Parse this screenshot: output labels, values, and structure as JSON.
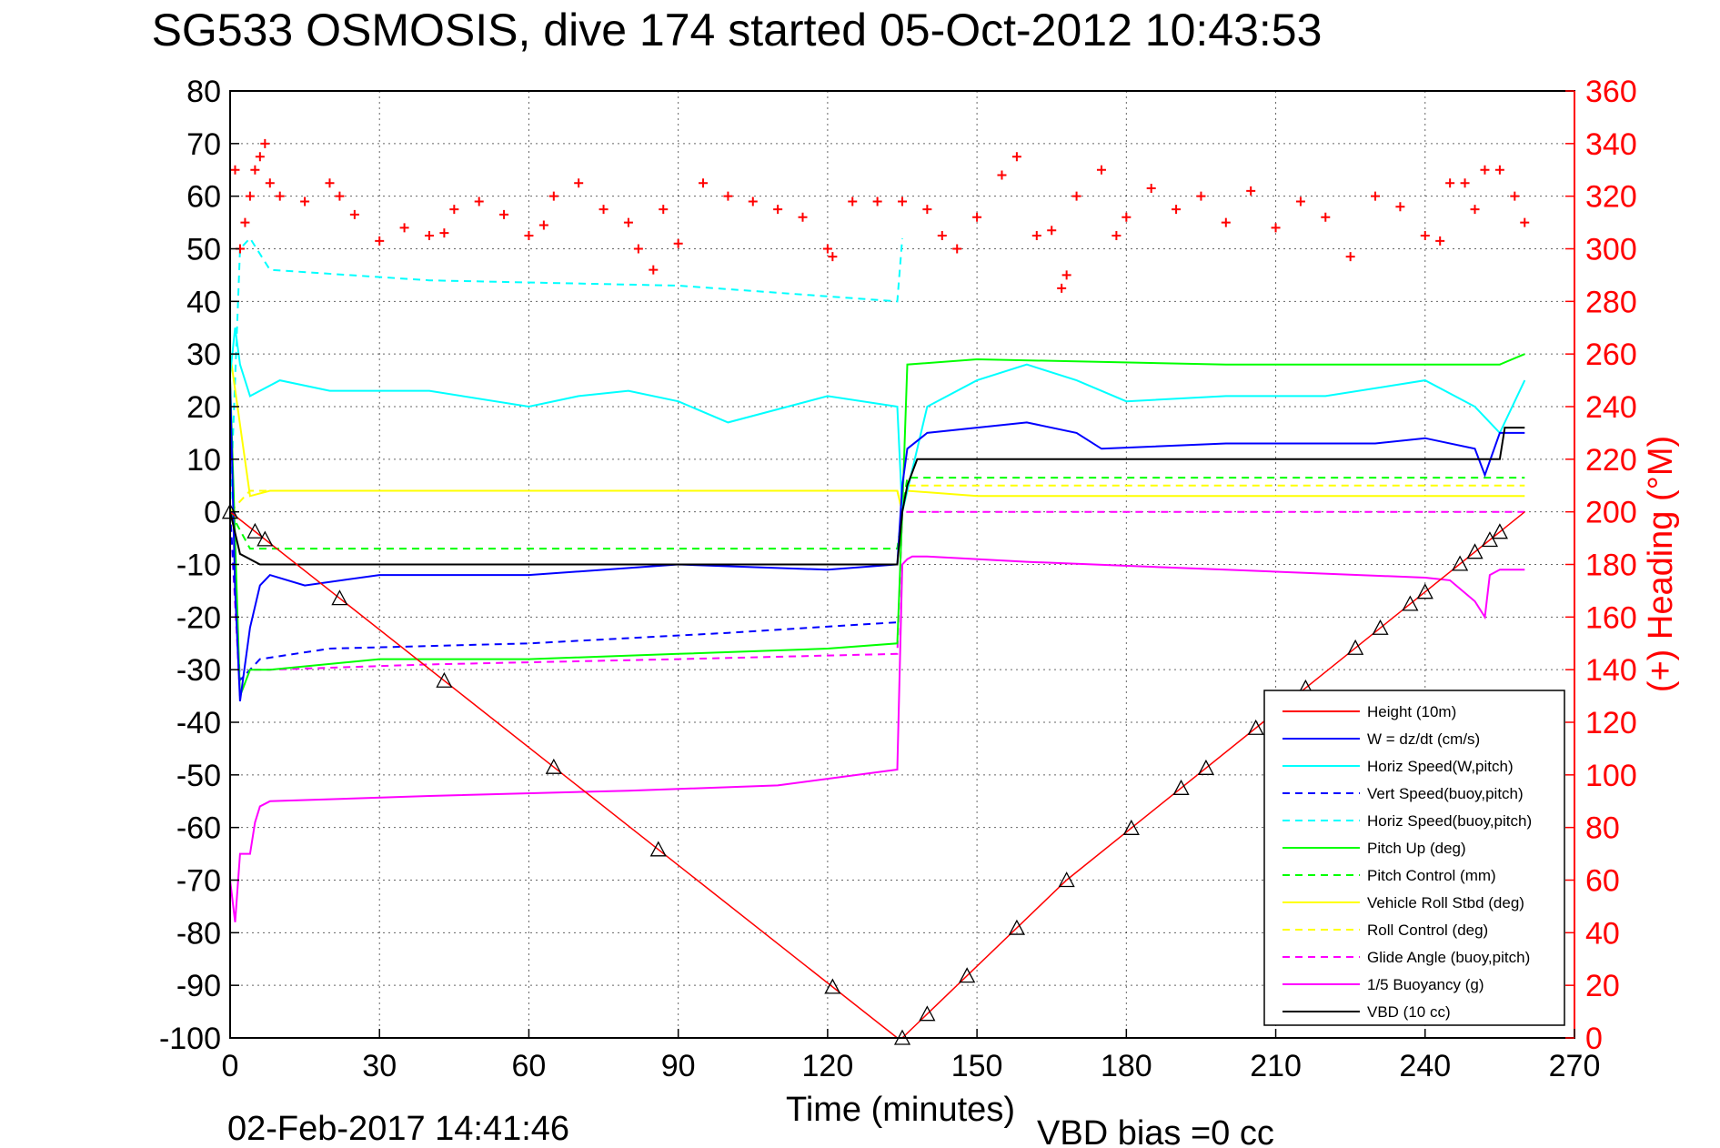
{
  "chart_data": {
    "type": "line",
    "title": "SG533 OSMOSIS, dive 174 started 05-Oct-2012 10:43:53",
    "xlabel": "Time (minutes)",
    "ylabel_right": "(+) Heading (°M)",
    "footer_left": "02-Feb-2017 14:41:46",
    "footer_right": "VBD bias =0 cc",
    "xlim": [
      0,
      270
    ],
    "ylim": [
      -100,
      80
    ],
    "ylim_right": [
      0,
      360
    ],
    "grid": true,
    "legend_position": "bottom-right",
    "x_ticks": [
      "0",
      "30",
      "60",
      "90",
      "120",
      "150",
      "180",
      "210",
      "240",
      "270"
    ],
    "y_ticks": [
      "80",
      "70",
      "60",
      "50",
      "40",
      "30",
      "20",
      "10",
      "0",
      "-10",
      "-20",
      "-30",
      "-40",
      "-50",
      "-60",
      "-70",
      "-80",
      "-90",
      "-100"
    ],
    "y_ticks_right": [
      "360",
      "340",
      "320",
      "300",
      "280",
      "260",
      "240",
      "220",
      "200",
      "180",
      "160",
      "140",
      "120",
      "100",
      "80",
      "60",
      "40",
      "20",
      "0"
    ],
    "legend": [
      {
        "label": "Height (10m)",
        "color": "#ff0000",
        "dash": false
      },
      {
        "label": "W = dz/dt (cm/s)",
        "color": "#0000ff",
        "dash": false
      },
      {
        "label": "Horiz Speed(W,pitch)",
        "color": "#00ffff",
        "dash": false
      },
      {
        "label": "Vert Speed(buoy,pitch)",
        "color": "#0000ff",
        "dash": true
      },
      {
        "label": "Horiz Speed(buoy,pitch)",
        "color": "#00ffff",
        "dash": true
      },
      {
        "label": "Pitch Up (deg)",
        "color": "#00ff00",
        "dash": false
      },
      {
        "label": "Pitch Control (mm)",
        "color": "#00ff00",
        "dash": true
      },
      {
        "label": "Vehicle Roll Stbd (deg)",
        "color": "#ffff00",
        "dash": false
      },
      {
        "label": "Roll Control (deg)",
        "color": "#ffff00",
        "dash": true
      },
      {
        "label": "Glide Angle (buoy,pitch)",
        "color": "#ff00ff",
        "dash": true
      },
      {
        "label": "1/5 Buoyancy (g)",
        "color": "#ff00ff",
        "dash": false
      },
      {
        "label": "VBD (10 cc)",
        "color": "#000000",
        "dash": false
      }
    ],
    "series": [
      {
        "name": "Height (10m)",
        "color": "#ff0000",
        "dash": false,
        "x": [
          0,
          134,
          135,
          168,
          260
        ],
        "y": [
          0,
          -100,
          -100,
          -70,
          0
        ]
      },
      {
        "name": "W = dz/dt (cm/s)",
        "color": "#0000ff",
        "dash": false,
        "x": [
          0,
          1,
          2,
          4,
          6,
          8,
          15,
          30,
          60,
          90,
          120,
          134,
          135,
          136,
          140,
          150,
          160,
          170,
          175,
          200,
          230,
          240,
          250,
          252,
          255,
          260
        ],
        "y": [
          25,
          -15,
          -36,
          -22,
          -14,
          -12,
          -14,
          -12,
          -12,
          -10,
          -11,
          -10,
          5,
          12,
          15,
          16,
          17,
          15,
          12,
          13,
          13,
          14,
          12,
          7,
          15,
          15
        ]
      },
      {
        "name": "Horiz Speed(W,pitch)",
        "color": "#00ffff",
        "dash": false,
        "x": [
          0,
          1,
          2,
          4,
          6,
          10,
          20,
          40,
          60,
          70,
          80,
          90,
          100,
          120,
          134,
          135,
          140,
          150,
          160,
          170,
          180,
          200,
          220,
          240,
          250,
          255,
          260
        ],
        "y": [
          26,
          35,
          28,
          22,
          23,
          25,
          23,
          23,
          20,
          22,
          23,
          21,
          17,
          22,
          20,
          0,
          20,
          25,
          28,
          25,
          21,
          22,
          22,
          25,
          20,
          15,
          25
        ]
      },
      {
        "name": "Vert Speed(buoy,pitch)",
        "color": "#0000ff",
        "dash": true,
        "x": [
          0,
          2,
          4,
          6,
          20,
          60,
          100,
          134
        ],
        "y": [
          0,
          -32,
          -30,
          -28,
          -26,
          -25,
          -23,
          -21
        ]
      },
      {
        "name": "Horiz Speed(buoy,pitch)",
        "color": "#00ffff",
        "dash": true,
        "x": [
          0,
          2,
          4,
          8,
          40,
          90,
          134,
          135
        ],
        "y": [
          0,
          50,
          52,
          46,
          44,
          43,
          40,
          52
        ]
      },
      {
        "name": "Pitch Up (deg)",
        "color": "#00ff00",
        "dash": false,
        "x": [
          0,
          2,
          4,
          8,
          30,
          60,
          90,
          120,
          134,
          135,
          136,
          150,
          200,
          250,
          255,
          260
        ],
        "y": [
          25,
          -35,
          -30,
          -30,
          -28,
          -28,
          -27,
          -26,
          -25,
          0,
          28,
          29,
          28,
          28,
          28,
          30
        ]
      },
      {
        "name": "Pitch Control (mm)",
        "color": "#00ff00",
        "dash": true,
        "x": [
          0,
          4,
          8,
          134,
          135,
          136,
          260
        ],
        "y": [
          0,
          -7,
          -7,
          -7,
          0,
          6.5,
          6.5
        ]
      },
      {
        "name": "Vehicle Roll Stbd (deg)",
        "color": "#ffff00",
        "dash": false,
        "x": [
          0,
          4,
          8,
          30,
          60,
          90,
          120,
          134,
          135,
          136,
          150,
          200,
          250,
          260
        ],
        "y": [
          30,
          3,
          4,
          4,
          4,
          4,
          4,
          4,
          0,
          4,
          3,
          3,
          3,
          3
        ]
      },
      {
        "name": "Roll Control (deg)",
        "color": "#ffff00",
        "dash": true,
        "x": [
          0,
          4,
          8,
          134,
          135,
          136,
          260
        ],
        "y": [
          0,
          4,
          4,
          4,
          0,
          5,
          5
        ]
      },
      {
        "name": "Glide Angle (buoy,pitch)",
        "color": "#ff00ff",
        "dash": true,
        "x": [
          0,
          2,
          4,
          8,
          40,
          90,
          134,
          135,
          136,
          260
        ],
        "y": [
          0,
          -35,
          -30,
          -30,
          -29,
          -28,
          -27,
          0,
          0,
          0
        ]
      },
      {
        "name": "1/5 Buoyancy (g)",
        "color": "#ff00ff",
        "dash": false,
        "x": [
          0,
          1,
          2,
          4,
          5,
          6,
          8,
          40,
          80,
          110,
          134,
          135,
          136,
          137,
          140,
          160,
          200,
          240,
          245,
          250,
          252,
          253,
          255,
          260
        ],
        "y": [
          -70,
          -78,
          -65,
          -65,
          -59,
          -56,
          -55,
          -54,
          -53,
          -52,
          -49,
          -10,
          -9,
          -8.5,
          -8.5,
          -9.5,
          -11,
          -12.5,
          -13,
          -17,
          -20,
          -12,
          -11,
          -11
        ]
      },
      {
        "name": "VBD (10 cc)",
        "color": "#000000",
        "dash": false,
        "x": [
          0,
          2,
          6,
          134,
          135,
          136,
          138,
          150,
          200,
          255,
          256,
          260
        ],
        "y": [
          0,
          -8,
          -10,
          -10,
          0,
          5,
          10,
          10,
          10,
          10,
          16,
          16
        ]
      }
    ],
    "heading_points_deg": {
      "color": "#ff0000",
      "x": [
        1,
        2,
        3,
        4,
        5,
        6,
        7,
        8,
        10,
        15,
        20,
        22,
        25,
        30,
        35,
        40,
        43,
        45,
        50,
        55,
        60,
        63,
        65,
        70,
        75,
        80,
        82,
        85,
        87,
        90,
        95,
        100,
        105,
        110,
        115,
        120,
        121,
        125,
        130,
        135,
        140,
        143,
        146,
        150,
        155,
        158,
        162,
        165,
        167,
        168,
        170,
        175,
        178,
        180,
        185,
        190,
        195,
        200,
        205,
        210,
        215,
        220,
        225,
        230,
        235,
        240,
        243,
        245,
        248,
        250,
        252,
        255,
        258,
        260
      ],
      "y": [
        330,
        300,
        310,
        320,
        330,
        335,
        340,
        325,
        320,
        318,
        325,
        320,
        313,
        303,
        308,
        305,
        306,
        315,
        318,
        313,
        305,
        309,
        320,
        325,
        315,
        310,
        300,
        292,
        315,
        302,
        325,
        320,
        318,
        315,
        312,
        300,
        297,
        318,
        318,
        318,
        315,
        305,
        300,
        312,
        328,
        335,
        305,
        307,
        285,
        290,
        320,
        330,
        305,
        312,
        323,
        315,
        320,
        310,
        322,
        308,
        318,
        312,
        297,
        320,
        316,
        305,
        303,
        325,
        325,
        315,
        330,
        330,
        320,
        310
      ]
    }
  }
}
